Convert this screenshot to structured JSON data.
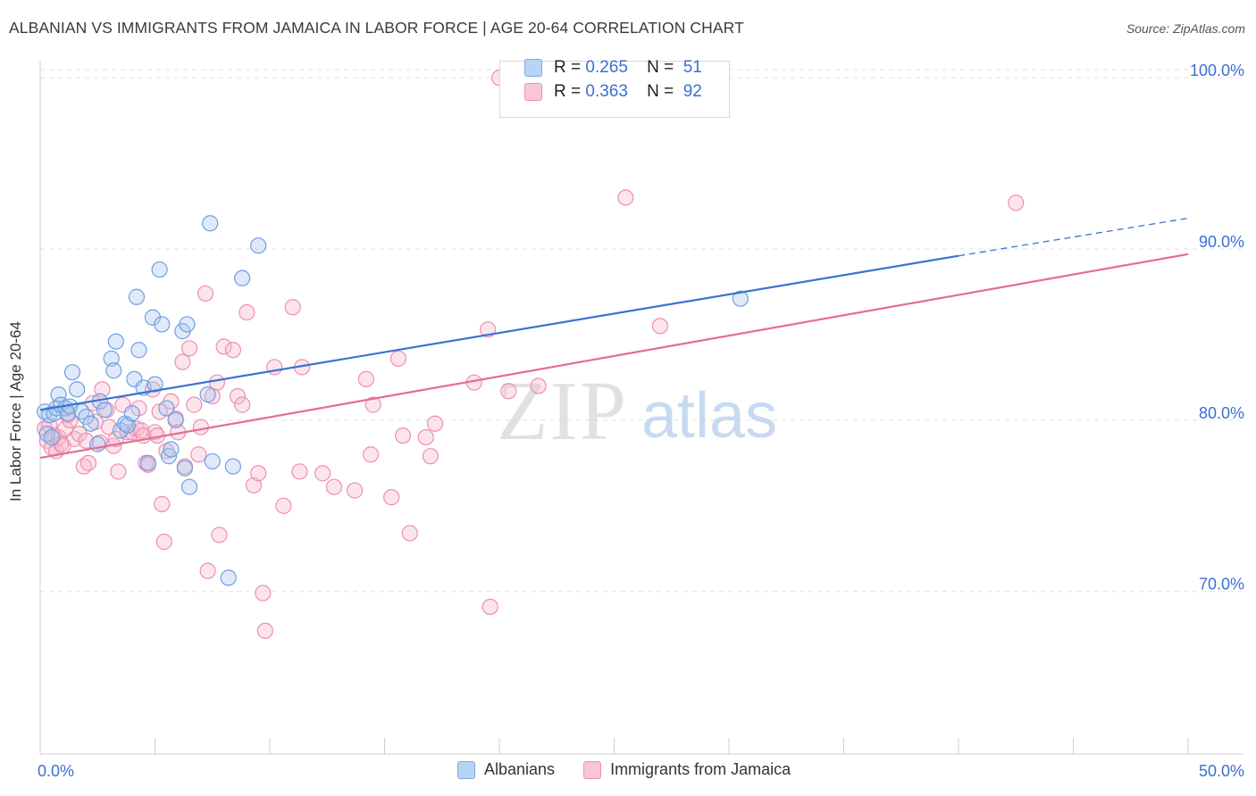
{
  "title": "ALBANIAN VS IMMIGRANTS FROM JAMAICA IN LABOR FORCE | AGE 20-64 CORRELATION CHART",
  "source": "Source: ZipAtlas.com",
  "watermark": {
    "zip": "ZIP",
    "atlas": "atlas"
  },
  "legend_top": {
    "rows": [
      {
        "r_label": "R =",
        "r_value": "0.265",
        "n_label": "N =",
        "n_value": "51"
      },
      {
        "r_label": "R =",
        "r_value": "0.363",
        "n_label": "N =",
        "n_value": "92"
      }
    ]
  },
  "legend_bottom": [
    "Albanians",
    "Immigrants from Jamaica"
  ],
  "chart_data": {
    "type": "scatter",
    "title": "ALBANIAN VS IMMIGRANTS FROM JAMAICA IN LABOR FORCE | AGE 20-64 CORRELATION CHART",
    "xlabel": "",
    "ylabel": "In Labor Force | Age 20-64",
    "xlim": [
      0,
      50
    ],
    "ylim": [
      60.5,
      101
    ],
    "x_tick_labels": [
      "0.0%",
      "50.0%"
    ],
    "y_ticks": [
      70,
      80,
      90,
      100
    ],
    "y_tick_labels": [
      "70.0%",
      "80.0%",
      "90.0%",
      "100.0%"
    ],
    "grid": true,
    "legend_placement": "top-center",
    "colors": {
      "albanians": "#6f9fe0",
      "jamaica": "#ee8fae",
      "blue_line": "#3a73d0",
      "pink_line": "#e46d97",
      "tick_text": "#3a6fd1"
    },
    "series": [
      {
        "name": "Albanians",
        "r": 0.265,
        "n": 51,
        "trend": {
          "x": [
            0.0,
            40.0
          ],
          "y": [
            80.6,
            89.6
          ],
          "dashed_to": [
            50.0,
            91.8
          ]
        },
        "points": [
          [
            0.2,
            80.5
          ],
          [
            0.3,
            79.2
          ],
          [
            0.4,
            80.3
          ],
          [
            0.5,
            79.0
          ],
          [
            0.6,
            80.4
          ],
          [
            0.7,
            80.7
          ],
          [
            0.8,
            81.5
          ],
          [
            0.9,
            80.9
          ],
          [
            1.1,
            80.7
          ],
          [
            1.2,
            80.4
          ],
          [
            1.3,
            80.8
          ],
          [
            1.4,
            82.8
          ],
          [
            1.6,
            81.8
          ],
          [
            1.8,
            80.5
          ],
          [
            2.0,
            80.2
          ],
          [
            2.2,
            79.8
          ],
          [
            2.5,
            78.6
          ],
          [
            2.6,
            81.1
          ],
          [
            2.8,
            80.6
          ],
          [
            3.1,
            83.6
          ],
          [
            3.2,
            82.9
          ],
          [
            3.3,
            84.6
          ],
          [
            3.5,
            79.4
          ],
          [
            3.7,
            79.8
          ],
          [
            3.8,
            79.7
          ],
          [
            4.0,
            80.4
          ],
          [
            4.1,
            82.4
          ],
          [
            4.2,
            87.2
          ],
          [
            4.3,
            84.1
          ],
          [
            4.5,
            81.9
          ],
          [
            4.7,
            77.5
          ],
          [
            4.9,
            86.0
          ],
          [
            5.0,
            82.1
          ],
          [
            5.2,
            88.8
          ],
          [
            5.3,
            85.6
          ],
          [
            5.5,
            80.7
          ],
          [
            5.6,
            77.9
          ],
          [
            5.7,
            78.3
          ],
          [
            5.9,
            80.0
          ],
          [
            6.2,
            85.2
          ],
          [
            6.3,
            77.2
          ],
          [
            6.4,
            85.6
          ],
          [
            6.5,
            76.1
          ],
          [
            7.3,
            81.5
          ],
          [
            7.4,
            91.5
          ],
          [
            7.5,
            77.6
          ],
          [
            8.2,
            70.8
          ],
          [
            8.4,
            77.3
          ],
          [
            8.8,
            88.3
          ],
          [
            9.5,
            90.2
          ],
          [
            30.5,
            87.1
          ]
        ]
      },
      {
        "name": "Immigrants from Jamaica",
        "r": 0.363,
        "n": 92,
        "trend": {
          "x": [
            0.0,
            50.0
          ],
          "y": [
            77.8,
            89.7
          ]
        },
        "points": [
          [
            0.2,
            79.5
          ],
          [
            0.3,
            78.8
          ],
          [
            0.4,
            79.7
          ],
          [
            0.5,
            78.4
          ],
          [
            0.6,
            79.1
          ],
          [
            0.7,
            78.2
          ],
          [
            0.8,
            79.0
          ],
          [
            0.9,
            78.6
          ],
          [
            1.0,
            78.5
          ],
          [
            1.1,
            79.5
          ],
          [
            1.2,
            80.3
          ],
          [
            1.3,
            80.0
          ],
          [
            1.5,
            78.9
          ],
          [
            1.7,
            79.2
          ],
          [
            1.9,
            77.3
          ],
          [
            2.0,
            78.8
          ],
          [
            2.1,
            77.5
          ],
          [
            2.3,
            81.0
          ],
          [
            2.4,
            79.9
          ],
          [
            2.6,
            78.7
          ],
          [
            2.7,
            81.8
          ],
          [
            2.9,
            80.6
          ],
          [
            3.0,
            79.6
          ],
          [
            3.2,
            78.5
          ],
          [
            3.3,
            78.9
          ],
          [
            3.4,
            77.0
          ],
          [
            3.6,
            80.9
          ],
          [
            3.8,
            79.3
          ],
          [
            4.0,
            79.3
          ],
          [
            4.2,
            79.5
          ],
          [
            4.3,
            80.7
          ],
          [
            4.4,
            79.4
          ],
          [
            4.5,
            79.1
          ],
          [
            4.6,
            77.5
          ],
          [
            4.7,
            77.4
          ],
          [
            4.9,
            81.8
          ],
          [
            5.0,
            79.3
          ],
          [
            5.1,
            79.1
          ],
          [
            5.2,
            80.5
          ],
          [
            5.3,
            75.1
          ],
          [
            5.4,
            72.9
          ],
          [
            5.5,
            78.2
          ],
          [
            5.7,
            81.1
          ],
          [
            5.9,
            80.1
          ],
          [
            6.0,
            79.3
          ],
          [
            6.2,
            83.4
          ],
          [
            6.3,
            77.3
          ],
          [
            6.5,
            84.2
          ],
          [
            6.7,
            80.9
          ],
          [
            6.9,
            78.0
          ],
          [
            7.0,
            79.6
          ],
          [
            7.3,
            71.2
          ],
          [
            7.5,
            81.4
          ],
          [
            7.7,
            82.2
          ],
          [
            7.8,
            73.3
          ],
          [
            8.0,
            84.3
          ],
          [
            8.4,
            84.1
          ],
          [
            8.6,
            81.4
          ],
          [
            8.8,
            80.9
          ],
          [
            9.0,
            86.3
          ],
          [
            9.3,
            76.2
          ],
          [
            9.5,
            76.9
          ],
          [
            9.7,
            69.9
          ],
          [
            9.8,
            67.7
          ],
          [
            10.2,
            83.1
          ],
          [
            10.6,
            75.0
          ],
          [
            11.0,
            86.6
          ],
          [
            11.3,
            77.0
          ],
          [
            11.4,
            83.1
          ],
          [
            12.3,
            76.9
          ],
          [
            12.8,
            76.1
          ],
          [
            13.7,
            75.9
          ],
          [
            14.2,
            82.4
          ],
          [
            14.4,
            78.0
          ],
          [
            14.5,
            80.9
          ],
          [
            15.3,
            75.5
          ],
          [
            15.6,
            83.6
          ],
          [
            15.8,
            79.1
          ],
          [
            16.1,
            73.4
          ],
          [
            16.8,
            79.0
          ],
          [
            17.0,
            77.9
          ],
          [
            17.2,
            79.8
          ],
          [
            18.9,
            82.2
          ],
          [
            19.5,
            85.3
          ],
          [
            19.6,
            69.1
          ],
          [
            20.0,
            100.0
          ],
          [
            20.4,
            81.7
          ],
          [
            21.7,
            82.0
          ],
          [
            25.5,
            93.0
          ],
          [
            27.0,
            85.5
          ],
          [
            42.5,
            92.7
          ],
          [
            7.2,
            87.4
          ]
        ]
      }
    ]
  }
}
